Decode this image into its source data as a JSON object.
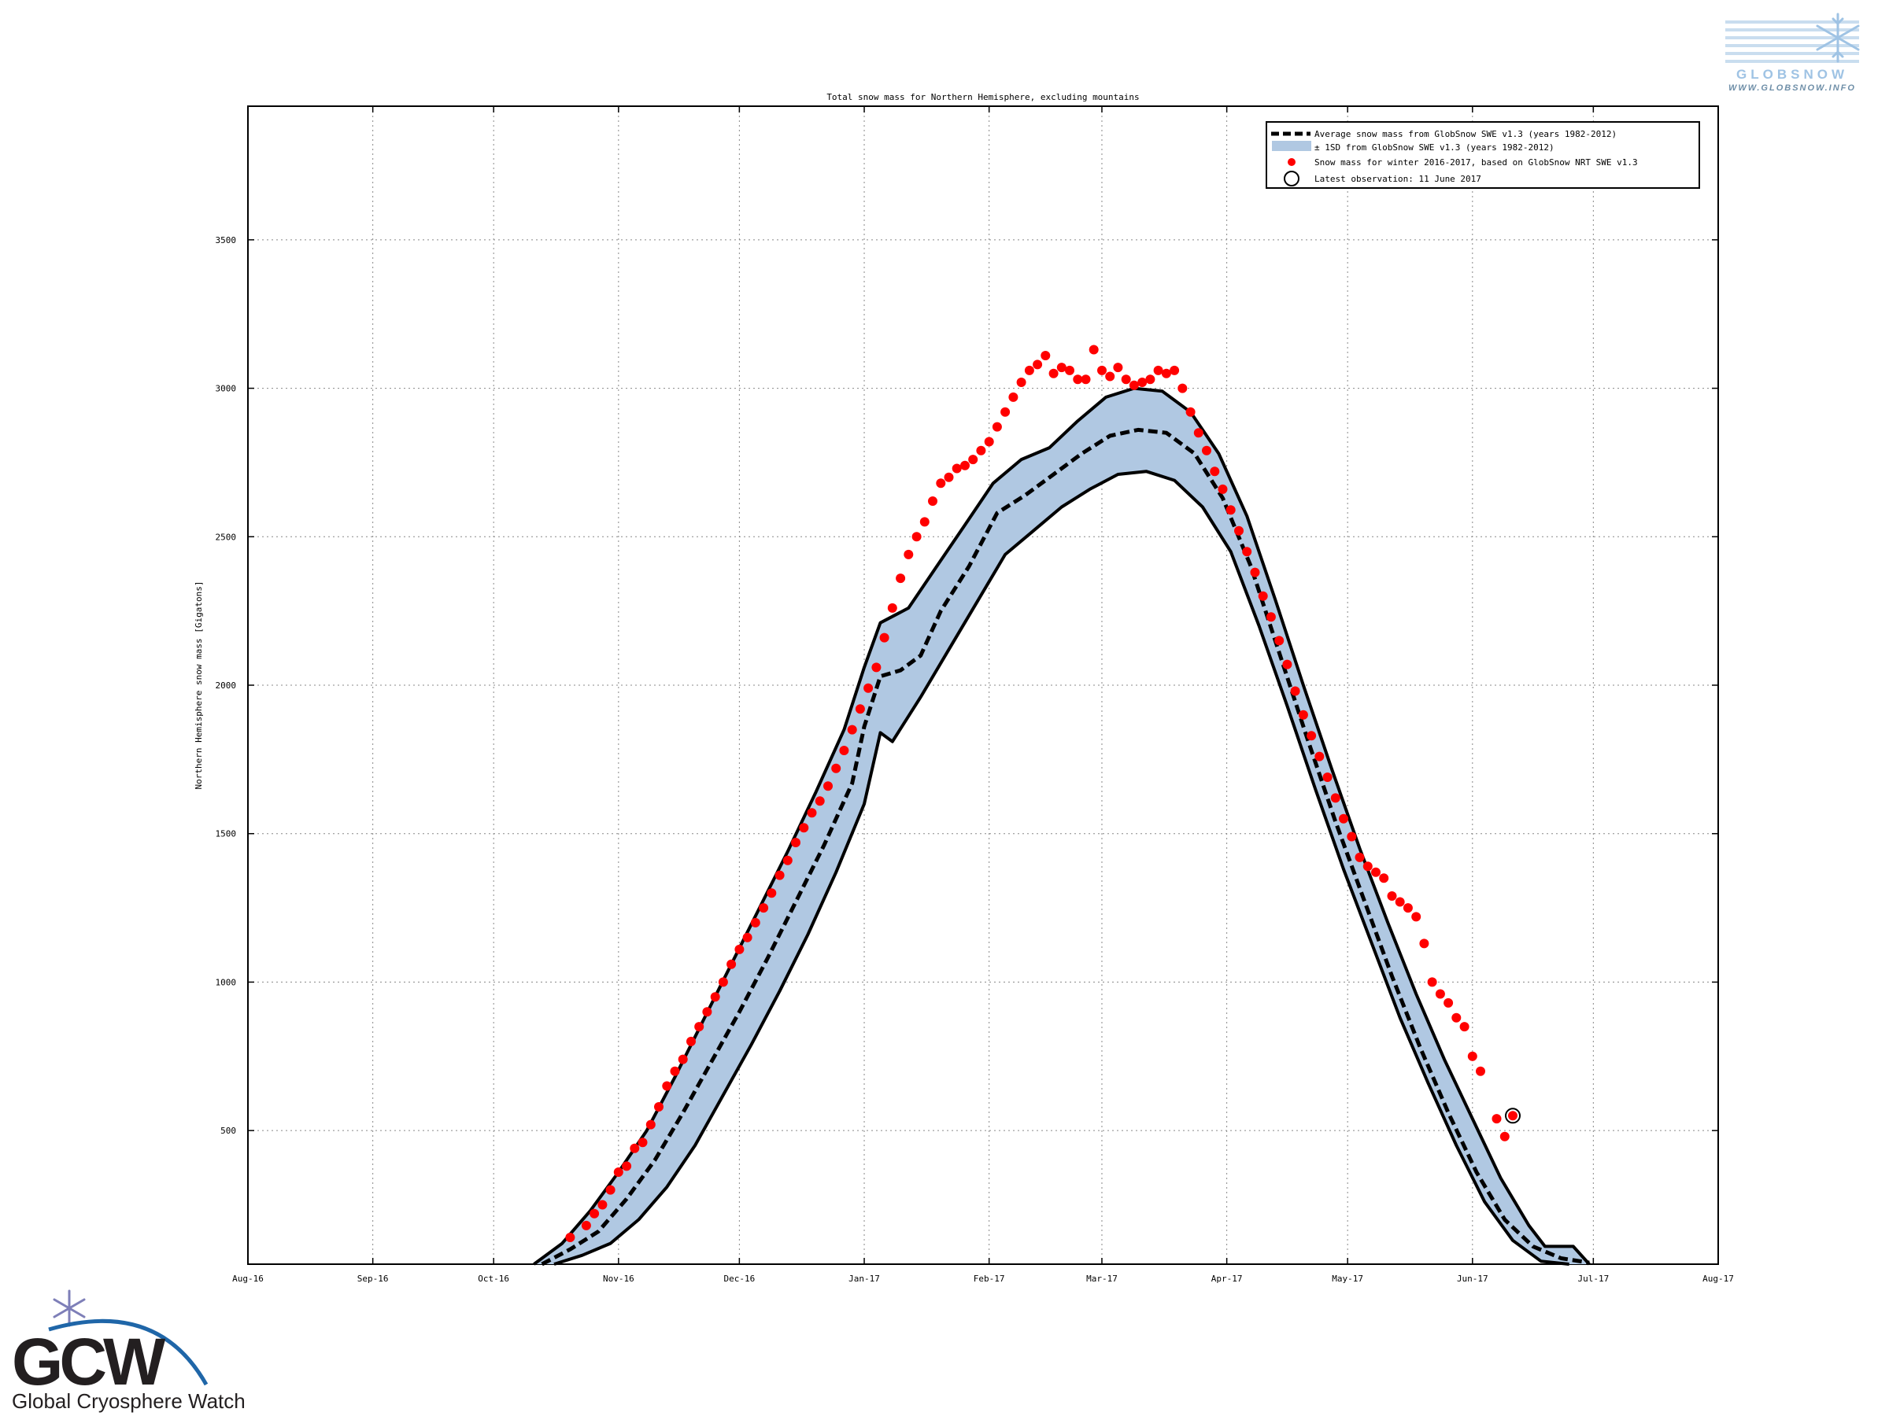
{
  "chart_data": {
    "type": "line",
    "title": "Total snow mass for Northern Hemisphere, excluding mountains",
    "xlabel": "",
    "ylabel": "Northern Hemisphere snow mass [Gigatons]",
    "x_ticks": [
      "Aug-16",
      "Sep-16",
      "Oct-16",
      "Nov-16",
      "Dec-16",
      "Jan-17",
      "Feb-17",
      "Mar-17",
      "Apr-17",
      "May-17",
      "Jun-17",
      "Jul-17",
      "Aug-17"
    ],
    "x_range": [
      "2016-08-01",
      "2017-08-01"
    ],
    "y_ticks": [
      500,
      1000,
      1500,
      2000,
      2500,
      3000,
      3500
    ],
    "ylim": [
      50,
      3950
    ],
    "grid": true,
    "legend_position": "top-right",
    "legend": [
      "Average snow mass from GlobSnow SWE v1.3 (years 1982-2012)",
      "± 1SD from GlobSnow SWE v1.3 (years 1982-2012)",
      "Snow mass for winter 2016-2017, based on GlobSnow NRT SWE v1.3",
      "Latest observation: 11 June 2017"
    ],
    "series": [
      {
        "name": "Average snow mass from GlobSnow SWE v1.3 (years 1982-2012)",
        "style": "dashed",
        "color": "#000000",
        "points": [
          [
            "2016-10-13",
            50
          ],
          [
            "2016-10-20",
            100
          ],
          [
            "2016-10-27",
            160
          ],
          [
            "2016-11-03",
            270
          ],
          [
            "2016-11-10",
            400
          ],
          [
            "2016-11-17",
            560
          ],
          [
            "2016-11-24",
            730
          ],
          [
            "2016-12-01",
            900
          ],
          [
            "2016-12-08",
            1080
          ],
          [
            "2016-12-15",
            1270
          ],
          [
            "2016-12-22",
            1460
          ],
          [
            "2016-12-29",
            1670
          ],
          [
            "2017-01-01",
            1860
          ],
          [
            "2017-01-05",
            2030
          ],
          [
            "2017-01-10",
            2050
          ],
          [
            "2017-01-15",
            2100
          ],
          [
            "2017-01-20",
            2250
          ],
          [
            "2017-01-27",
            2400
          ],
          [
            "2017-02-03",
            2580
          ],
          [
            "2017-02-10",
            2640
          ],
          [
            "2017-02-17",
            2710
          ],
          [
            "2017-02-24",
            2780
          ],
          [
            "2017-03-03",
            2840
          ],
          [
            "2017-03-10",
            2860
          ],
          [
            "2017-03-17",
            2850
          ],
          [
            "2017-03-24",
            2780
          ],
          [
            "2017-03-31",
            2630
          ],
          [
            "2017-04-07",
            2400
          ],
          [
            "2017-04-14",
            2110
          ],
          [
            "2017-04-21",
            1820
          ],
          [
            "2017-04-28",
            1540
          ],
          [
            "2017-05-05",
            1280
          ],
          [
            "2017-05-12",
            1020
          ],
          [
            "2017-05-19",
            780
          ],
          [
            "2017-05-26",
            560
          ],
          [
            "2017-06-02",
            360
          ],
          [
            "2017-06-09",
            200
          ],
          [
            "2017-06-16",
            110
          ],
          [
            "2017-06-23",
            70
          ],
          [
            "2017-06-30",
            55
          ]
        ]
      },
      {
        "name": "± 1SD from GlobSnow SWE v1.3 (years 1982-2012)",
        "type": "band",
        "color": "#b0c8e2",
        "upper": [
          [
            "2016-10-11",
            50
          ],
          [
            "2016-10-18",
            120
          ],
          [
            "2016-10-25",
            230
          ],
          [
            "2016-11-01",
            360
          ],
          [
            "2016-11-08",
            500
          ],
          [
            "2016-11-15",
            680
          ],
          [
            "2016-11-22",
            870
          ],
          [
            "2016-11-29",
            1060
          ],
          [
            "2016-12-06",
            1250
          ],
          [
            "2016-12-13",
            1440
          ],
          [
            "2016-12-20",
            1640
          ],
          [
            "2016-12-27",
            1850
          ],
          [
            "2017-01-01",
            2060
          ],
          [
            "2017-01-05",
            2210
          ],
          [
            "2017-01-12",
            2260
          ],
          [
            "2017-01-19",
            2400
          ],
          [
            "2017-01-26",
            2540
          ],
          [
            "2017-02-02",
            2680
          ],
          [
            "2017-02-09",
            2760
          ],
          [
            "2017-02-16",
            2800
          ],
          [
            "2017-02-23",
            2890
          ],
          [
            "2017-03-02",
            2970
          ],
          [
            "2017-03-09",
            3000
          ],
          [
            "2017-03-16",
            2990
          ],
          [
            "2017-03-23",
            2920
          ],
          [
            "2017-03-30",
            2780
          ],
          [
            "2017-04-06",
            2570
          ],
          [
            "2017-04-13",
            2290
          ],
          [
            "2017-04-20",
            2000
          ],
          [
            "2017-04-27",
            1720
          ],
          [
            "2017-05-04",
            1450
          ],
          [
            "2017-05-11",
            1200
          ],
          [
            "2017-05-18",
            960
          ],
          [
            "2017-05-25",
            740
          ],
          [
            "2017-06-01",
            540
          ],
          [
            "2017-06-08",
            340
          ],
          [
            "2017-06-15",
            180
          ],
          [
            "2017-06-19",
            110
          ],
          [
            "2017-06-26",
            110
          ],
          [
            "2017-06-30",
            50
          ]
        ],
        "lower": [
          [
            "2016-10-16",
            50
          ],
          [
            "2016-10-23",
            80
          ],
          [
            "2016-10-30",
            120
          ],
          [
            "2016-11-06",
            200
          ],
          [
            "2016-11-13",
            310
          ],
          [
            "2016-11-20",
            450
          ],
          [
            "2016-11-27",
            620
          ],
          [
            "2016-12-04",
            790
          ],
          [
            "2016-12-11",
            970
          ],
          [
            "2016-12-18",
            1160
          ],
          [
            "2016-12-25",
            1370
          ],
          [
            "2017-01-01",
            1600
          ],
          [
            "2017-01-05",
            1840
          ],
          [
            "2017-01-08",
            1810
          ],
          [
            "2017-01-15",
            1960
          ],
          [
            "2017-01-22",
            2120
          ],
          [
            "2017-01-29",
            2280
          ],
          [
            "2017-02-05",
            2440
          ],
          [
            "2017-02-12",
            2520
          ],
          [
            "2017-02-19",
            2600
          ],
          [
            "2017-02-26",
            2660
          ],
          [
            "2017-03-05",
            2710
          ],
          [
            "2017-03-12",
            2720
          ],
          [
            "2017-03-19",
            2690
          ],
          [
            "2017-03-26",
            2600
          ],
          [
            "2017-04-02",
            2450
          ],
          [
            "2017-04-09",
            2200
          ],
          [
            "2017-04-16",
            1930
          ],
          [
            "2017-04-23",
            1650
          ],
          [
            "2017-04-30",
            1380
          ],
          [
            "2017-05-07",
            1130
          ],
          [
            "2017-05-14",
            880
          ],
          [
            "2017-05-21",
            660
          ],
          [
            "2017-05-28",
            450
          ],
          [
            "2017-06-04",
            260
          ],
          [
            "2017-06-11",
            130
          ],
          [
            "2017-06-18",
            60
          ],
          [
            "2017-06-25",
            50
          ]
        ]
      },
      {
        "name": "Snow mass for winter 2016-2017, based on GlobSnow NRT SWE v1.3",
        "type": "scatter",
        "color": "#ff0000",
        "points": [
          [
            "2016-10-20",
            140
          ],
          [
            "2016-10-24",
            180
          ],
          [
            "2016-10-26",
            220
          ],
          [
            "2016-10-28",
            250
          ],
          [
            "2016-10-30",
            300
          ],
          [
            "2016-11-01",
            360
          ],
          [
            "2016-11-03",
            380
          ],
          [
            "2016-11-05",
            440
          ],
          [
            "2016-11-07",
            460
          ],
          [
            "2016-11-09",
            520
          ],
          [
            "2016-11-11",
            580
          ],
          [
            "2016-11-13",
            650
          ],
          [
            "2016-11-15",
            700
          ],
          [
            "2016-11-17",
            740
          ],
          [
            "2016-11-19",
            800
          ],
          [
            "2016-11-21",
            850
          ],
          [
            "2016-11-23",
            900
          ],
          [
            "2016-11-25",
            950
          ],
          [
            "2016-11-27",
            1000
          ],
          [
            "2016-11-29",
            1060
          ],
          [
            "2016-12-01",
            1110
          ],
          [
            "2016-12-03",
            1150
          ],
          [
            "2016-12-05",
            1200
          ],
          [
            "2016-12-07",
            1250
          ],
          [
            "2016-12-09",
            1300
          ],
          [
            "2016-12-11",
            1360
          ],
          [
            "2016-12-13",
            1410
          ],
          [
            "2016-12-15",
            1470
          ],
          [
            "2016-12-17",
            1520
          ],
          [
            "2016-12-19",
            1570
          ],
          [
            "2016-12-21",
            1610
          ],
          [
            "2016-12-23",
            1660
          ],
          [
            "2016-12-25",
            1720
          ],
          [
            "2016-12-27",
            1780
          ],
          [
            "2016-12-29",
            1850
          ],
          [
            "2016-12-31",
            1920
          ],
          [
            "2017-01-02",
            1990
          ],
          [
            "2017-01-04",
            2060
          ],
          [
            "2017-01-06",
            2160
          ],
          [
            "2017-01-08",
            2260
          ],
          [
            "2017-01-10",
            2360
          ],
          [
            "2017-01-12",
            2440
          ],
          [
            "2017-01-14",
            2500
          ],
          [
            "2017-01-16",
            2550
          ],
          [
            "2017-01-18",
            2620
          ],
          [
            "2017-01-20",
            2680
          ],
          [
            "2017-01-22",
            2700
          ],
          [
            "2017-01-24",
            2730
          ],
          [
            "2017-01-26",
            2740
          ],
          [
            "2017-01-28",
            2760
          ],
          [
            "2017-01-30",
            2790
          ],
          [
            "2017-02-01",
            2820
          ],
          [
            "2017-02-03",
            2870
          ],
          [
            "2017-02-05",
            2920
          ],
          [
            "2017-02-07",
            2970
          ],
          [
            "2017-02-09",
            3020
          ],
          [
            "2017-02-11",
            3060
          ],
          [
            "2017-02-13",
            3080
          ],
          [
            "2017-02-15",
            3110
          ],
          [
            "2017-02-17",
            3050
          ],
          [
            "2017-02-19",
            3070
          ],
          [
            "2017-02-21",
            3060
          ],
          [
            "2017-02-23",
            3030
          ],
          [
            "2017-02-25",
            3030
          ],
          [
            "2017-02-27",
            3130
          ],
          [
            "2017-03-01",
            3060
          ],
          [
            "2017-03-03",
            3040
          ],
          [
            "2017-03-05",
            3070
          ],
          [
            "2017-03-07",
            3030
          ],
          [
            "2017-03-09",
            3010
          ],
          [
            "2017-03-11",
            3020
          ],
          [
            "2017-03-13",
            3030
          ],
          [
            "2017-03-15",
            3060
          ],
          [
            "2017-03-17",
            3050
          ],
          [
            "2017-03-19",
            3060
          ],
          [
            "2017-03-21",
            3000
          ],
          [
            "2017-03-23",
            2920
          ],
          [
            "2017-03-25",
            2850
          ],
          [
            "2017-03-27",
            2790
          ],
          [
            "2017-03-29",
            2720
          ],
          [
            "2017-03-31",
            2660
          ],
          [
            "2017-04-02",
            2590
          ],
          [
            "2017-04-04",
            2520
          ],
          [
            "2017-04-06",
            2450
          ],
          [
            "2017-04-08",
            2380
          ],
          [
            "2017-04-10",
            2300
          ],
          [
            "2017-04-12",
            2230
          ],
          [
            "2017-04-14",
            2150
          ],
          [
            "2017-04-16",
            2070
          ],
          [
            "2017-04-18",
            1980
          ],
          [
            "2017-04-20",
            1900
          ],
          [
            "2017-04-22",
            1830
          ],
          [
            "2017-04-24",
            1760
          ],
          [
            "2017-04-26",
            1690
          ],
          [
            "2017-04-28",
            1620
          ],
          [
            "2017-04-30",
            1550
          ],
          [
            "2017-05-02",
            1490
          ],
          [
            "2017-05-04",
            1420
          ],
          [
            "2017-05-06",
            1390
          ],
          [
            "2017-05-08",
            1370
          ],
          [
            "2017-05-10",
            1350
          ],
          [
            "2017-05-12",
            1290
          ],
          [
            "2017-05-14",
            1270
          ],
          [
            "2017-05-16",
            1250
          ],
          [
            "2017-05-18",
            1220
          ],
          [
            "2017-05-20",
            1130
          ],
          [
            "2017-05-22",
            1000
          ],
          [
            "2017-05-24",
            960
          ],
          [
            "2017-05-26",
            930
          ],
          [
            "2017-05-28",
            880
          ],
          [
            "2017-05-30",
            850
          ],
          [
            "2017-06-01",
            750
          ],
          [
            "2017-06-03",
            700
          ],
          [
            "2017-06-07",
            540
          ],
          [
            "2017-06-09",
            480
          ],
          [
            "2017-06-11",
            550
          ]
        ]
      }
    ],
    "latest_observation": {
      "label": "Latest observation: 11 June 2017",
      "x": "2017-06-11",
      "y": 550
    }
  },
  "logos": {
    "globsnow_name": "GLOBSNOW",
    "globsnow_url": "WWW.GLOBSNOW.INFO",
    "gcw_acronym": "GCW",
    "gcw_name": "Global Cryosphere Watch"
  },
  "colors": {
    "band": "#b0c8e2",
    "observed": "#ff0000",
    "line": "#000000",
    "globsnow_blue": "#9fc3e4"
  }
}
